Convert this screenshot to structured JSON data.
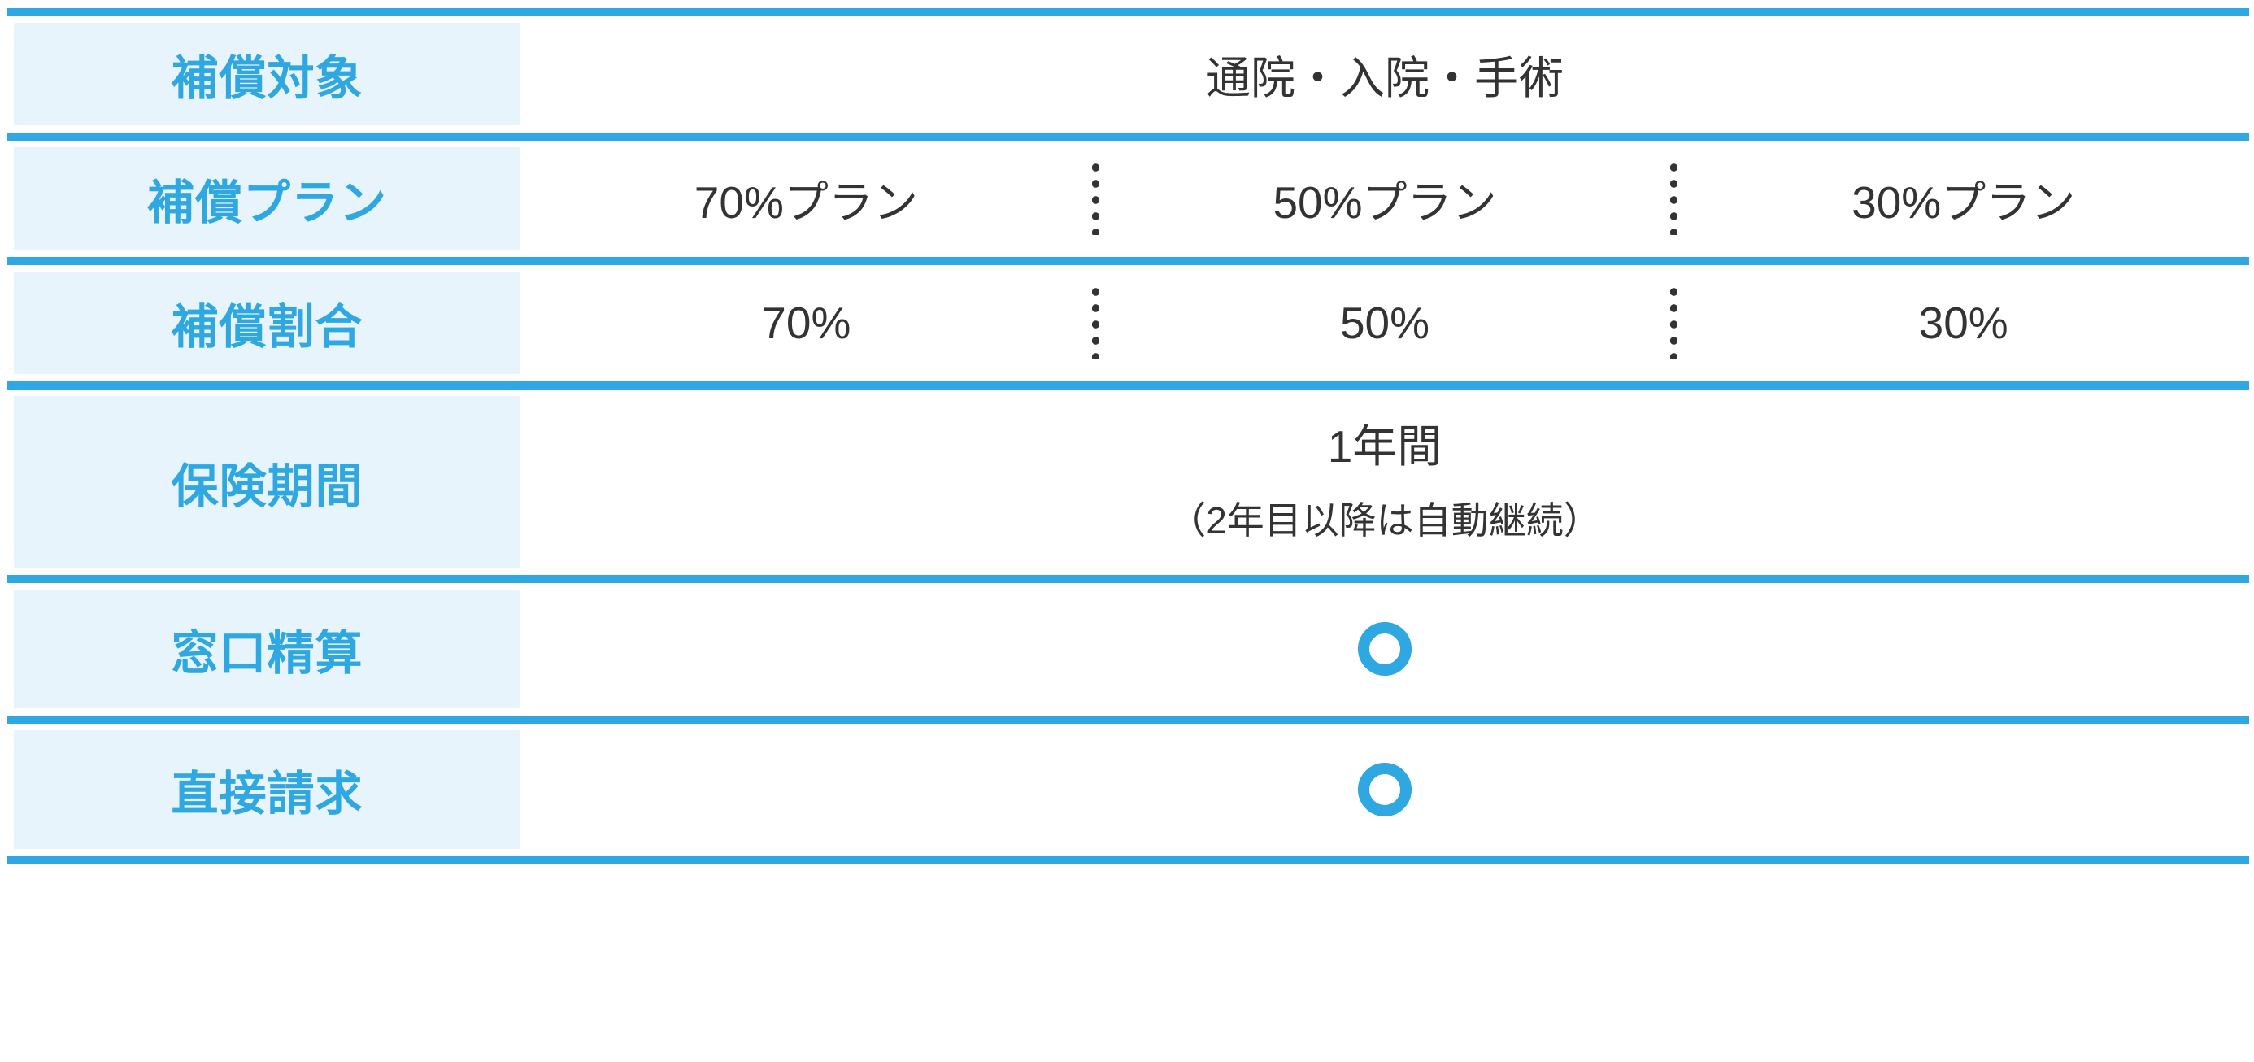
{
  "colors": {
    "accent": "#2FA7E0",
    "cell_bg": "#E7F4FB",
    "text": "#333333"
  },
  "table": {
    "rows": [
      {
        "label": "補償対象",
        "value": "通院・入院・手術"
      },
      {
        "label": "補償プラン",
        "values": [
          "70%プラン",
          "50%プラン",
          "30%プラン"
        ]
      },
      {
        "label": "補償割合",
        "values": [
          "70%",
          "50%",
          "30%"
        ]
      },
      {
        "label": "保険期間",
        "value_main": "1年間",
        "value_note": "（2年目以降は自動継続）"
      },
      {
        "label": "窓口精算",
        "mark": "○"
      },
      {
        "label": "直接請求",
        "mark": "○"
      }
    ]
  }
}
